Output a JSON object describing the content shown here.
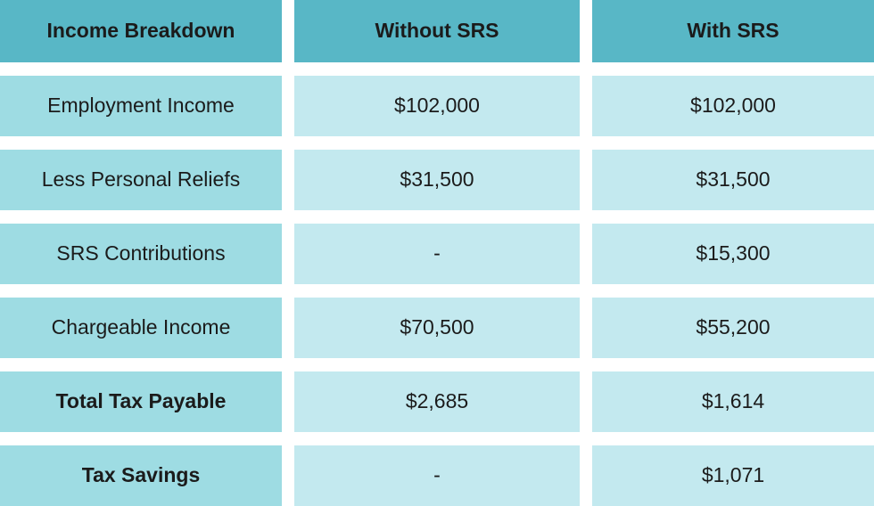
{
  "chart_data": {
    "type": "table",
    "columns": [
      "Income Breakdown",
      "Without SRS",
      "With SRS"
    ],
    "rows": [
      {
        "label": "Employment Income",
        "without_srs": "$102,000",
        "with_srs": "$102,000",
        "without_srs_value": 102000,
        "with_srs_value": 102000,
        "bold": false
      },
      {
        "label": "Less Personal Reliefs",
        "without_srs": "$31,500",
        "with_srs": "$31,500",
        "without_srs_value": 31500,
        "with_srs_value": 31500,
        "bold": false
      },
      {
        "label": "SRS Contributions",
        "without_srs": "-",
        "with_srs": "$15,300",
        "without_srs_value": null,
        "with_srs_value": 15300,
        "bold": false
      },
      {
        "label": "Chargeable Income",
        "without_srs": "$70,500",
        "with_srs": "$55,200",
        "without_srs_value": 70500,
        "with_srs_value": 55200,
        "bold": false
      },
      {
        "label": "Total Tax Payable",
        "without_srs": "$2,685",
        "with_srs": "$1,614",
        "without_srs_value": 2685,
        "with_srs_value": 1614,
        "bold": true
      },
      {
        "label": "Tax Savings",
        "without_srs": "-",
        "with_srs": "$1,071",
        "without_srs_value": null,
        "with_srs_value": 1071,
        "bold": true
      }
    ],
    "legend": null,
    "grid": false,
    "layout": "3-column comparison table with white gutters between cells"
  },
  "colors": {
    "header_bg": "#58b7c6",
    "label_bg": "#9edce3",
    "value_bg": "#c3e9ef",
    "text": "#1b1b1b",
    "page_bg": "#ffffff"
  }
}
